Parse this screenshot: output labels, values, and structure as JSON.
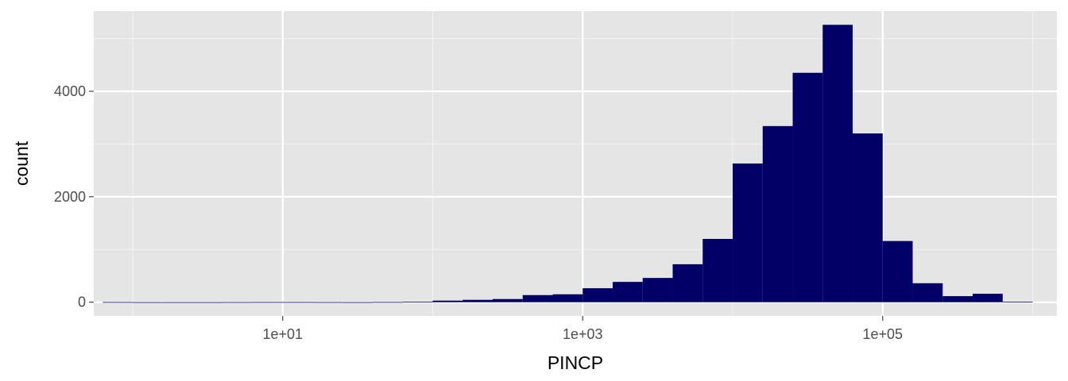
{
  "chart_data": {
    "type": "bar",
    "title": "",
    "xlabel": "PINCP",
    "ylabel": "count",
    "x_scale": "log10",
    "xlim": [
      0.55,
      1450000
    ],
    "ylim": [
      -260,
      5520
    ],
    "x_ticks": [
      10,
      1000,
      100000
    ],
    "x_tick_labels": [
      "1e+01",
      "1e+03",
      "1e+05"
    ],
    "y_ticks": [
      0,
      2000,
      4000
    ],
    "y_tick_labels": [
      "0",
      "2000",
      "4000"
    ],
    "grid": true,
    "bins_log10": [
      {
        "from": -0.2,
        "to": 0.0,
        "count": 3
      },
      {
        "from": 0.0,
        "to": 0.2,
        "count": 1
      },
      {
        "from": 0.2,
        "to": 0.4,
        "count": 1
      },
      {
        "from": 0.4,
        "to": 0.6,
        "count": 1
      },
      {
        "from": 0.6,
        "to": 0.8,
        "count": 2
      },
      {
        "from": 0.8,
        "to": 1.0,
        "count": 3
      },
      {
        "from": 1.0,
        "to": 1.2,
        "count": 3
      },
      {
        "from": 1.2,
        "to": 1.4,
        "count": 2
      },
      {
        "from": 1.4,
        "to": 1.6,
        "count": 1
      },
      {
        "from": 1.6,
        "to": 1.8,
        "count": 4
      },
      {
        "from": 1.8,
        "to": 2.0,
        "count": 8
      },
      {
        "from": 2.0,
        "to": 2.2,
        "count": 30
      },
      {
        "from": 2.2,
        "to": 2.4,
        "count": 45
      },
      {
        "from": 2.4,
        "to": 2.6,
        "count": 60
      },
      {
        "from": 2.6,
        "to": 2.8,
        "count": 135
      },
      {
        "from": 2.8,
        "to": 3.0,
        "count": 150
      },
      {
        "from": 3.0,
        "to": 3.2,
        "count": 265
      },
      {
        "from": 3.2,
        "to": 3.4,
        "count": 385
      },
      {
        "from": 3.4,
        "to": 3.6,
        "count": 460
      },
      {
        "from": 3.6,
        "to": 3.8,
        "count": 720
      },
      {
        "from": 3.8,
        "to": 4.0,
        "count": 1200
      },
      {
        "from": 4.0,
        "to": 4.2,
        "count": 2630
      },
      {
        "from": 4.2,
        "to": 4.4,
        "count": 3340
      },
      {
        "from": 4.4,
        "to": 4.6,
        "count": 4350
      },
      {
        "from": 4.6,
        "to": 4.8,
        "count": 5260
      },
      {
        "from": 4.8,
        "to": 5.0,
        "count": 3200
      },
      {
        "from": 5.0,
        "to": 5.2,
        "count": 1160
      },
      {
        "from": 5.2,
        "to": 5.4,
        "count": 360
      },
      {
        "from": 5.4,
        "to": 5.6,
        "count": 115
      },
      {
        "from": 5.6,
        "to": 5.8,
        "count": 160
      },
      {
        "from": 5.8,
        "to": 6.0,
        "count": 10
      }
    ],
    "colors": {
      "bar": "#000066",
      "panel": "#e5e5e5",
      "grid_major": "#ffffff",
      "grid_minor": "#f2f2f2"
    }
  }
}
